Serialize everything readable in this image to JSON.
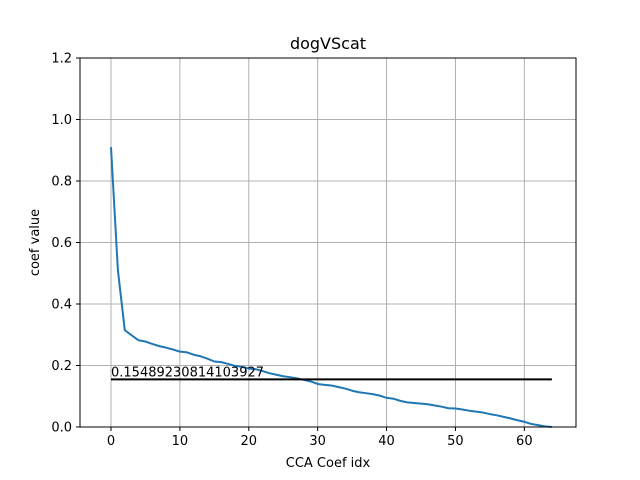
{
  "chart_data": {
    "type": "line",
    "title": "dogVScat",
    "xlabel": "CCA Coef idx",
    "ylabel": "coef value",
    "xlim": [
      -4.5,
      67.5
    ],
    "ylim": [
      0,
      1.2
    ],
    "xticks": [
      0,
      10,
      20,
      30,
      40,
      50,
      60
    ],
    "yticks": [
      0.0,
      0.2,
      0.4,
      0.6,
      0.8,
      1.0,
      1.2
    ],
    "xtick_labels": [
      "0",
      "10",
      "20",
      "30",
      "40",
      "50",
      "60"
    ],
    "ytick_labels": [
      "0.0",
      "0.2",
      "0.4",
      "0.6",
      "0.8",
      "1.0",
      "1.2"
    ],
    "grid": true,
    "series": [
      {
        "color": "#1f77b4",
        "x": [
          0,
          1,
          2,
          3,
          4,
          5,
          6,
          7,
          8,
          9,
          10,
          11,
          12,
          13,
          14,
          15,
          16,
          17,
          18,
          19,
          20,
          21,
          22,
          23,
          24,
          25,
          26,
          27,
          28,
          29,
          30,
          31,
          32,
          33,
          34,
          35,
          36,
          37,
          38,
          39,
          40,
          41,
          42,
          43,
          44,
          45,
          46,
          47,
          48,
          49,
          50,
          51,
          52,
          53,
          54,
          55,
          56,
          57,
          58,
          59,
          60,
          61,
          62,
          63,
          64
        ],
        "values": [
          0.91,
          0.51,
          0.315,
          0.298,
          0.282,
          0.278,
          0.27,
          0.263,
          0.258,
          0.252,
          0.245,
          0.243,
          0.235,
          0.23,
          0.222,
          0.213,
          0.211,
          0.205,
          0.199,
          0.196,
          0.19,
          0.188,
          0.182,
          0.175,
          0.17,
          0.165,
          0.162,
          0.158,
          0.153,
          0.148,
          0.14,
          0.137,
          0.135,
          0.13,
          0.125,
          0.118,
          0.113,
          0.11,
          0.107,
          0.102,
          0.095,
          0.092,
          0.085,
          0.08,
          0.078,
          0.076,
          0.074,
          0.07,
          0.066,
          0.061,
          0.06,
          0.057,
          0.053,
          0.05,
          0.047,
          0.042,
          0.038,
          0.033,
          0.028,
          0.022,
          0.017,
          0.01,
          0.006,
          0.002,
          0.0
        ]
      },
      {
        "color": "#000000",
        "x": [
          0,
          64
        ],
        "values": [
          0.15489230814103927,
          0.15489230814103927
        ]
      }
    ],
    "annotations": [
      {
        "text": "0.15489230814103927",
        "x": 0,
        "y": 0.15489230814103927
      }
    ]
  }
}
